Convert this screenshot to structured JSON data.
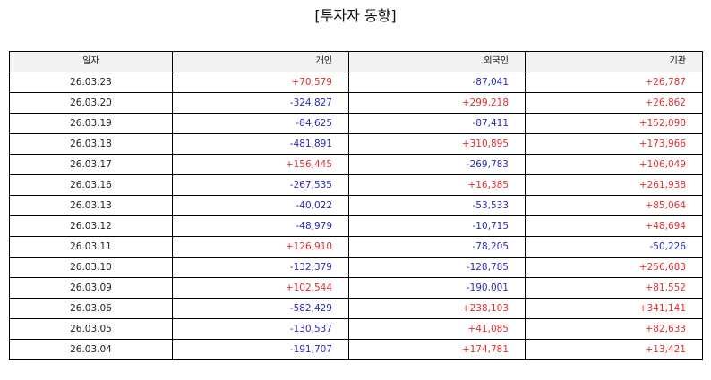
{
  "title": "[투자자 동향]",
  "colors": {
    "positive": "#e03030",
    "negative": "#2b2bb8",
    "header_bg": "#f2f2f2",
    "border": "#000000"
  },
  "table": {
    "headers": [
      "일자",
      "개인",
      "외국인",
      "기관"
    ],
    "rows": [
      {
        "date": "26.03.23",
        "individual": "+70,579",
        "foreign": "-87,041",
        "institution": "+26,787"
      },
      {
        "date": "26.03.20",
        "individual": "-324,827",
        "foreign": "+299,218",
        "institution": "+26,862"
      },
      {
        "date": "26.03.19",
        "individual": "-84,625",
        "foreign": "-87,411",
        "institution": "+152,098"
      },
      {
        "date": "26.03.18",
        "individual": "-481,891",
        "foreign": "+310,895",
        "institution": "+173,966"
      },
      {
        "date": "26.03.17",
        "individual": "+156,445",
        "foreign": "-269,783",
        "institution": "+106,049"
      },
      {
        "date": "26.03.16",
        "individual": "-267,535",
        "foreign": "+16,385",
        "institution": "+261,938"
      },
      {
        "date": "26.03.13",
        "individual": "-40,022",
        "foreign": "-53,533",
        "institution": "+85,064"
      },
      {
        "date": "26.03.12",
        "individual": "-48,979",
        "foreign": "-10,715",
        "institution": "+48,694"
      },
      {
        "date": "26.03.11",
        "individual": "+126,910",
        "foreign": "-78,205",
        "institution": "-50,226"
      },
      {
        "date": "26.03.10",
        "individual": "-132,379",
        "foreign": "-128,785",
        "institution": "+256,683"
      },
      {
        "date": "26.03.09",
        "individual": "+102,544",
        "foreign": "-190,001",
        "institution": "+81,552"
      },
      {
        "date": "26.03.06",
        "individual": "-582,429",
        "foreign": "+238,103",
        "institution": "+341,141"
      },
      {
        "date": "26.03.05",
        "individual": "-130,537",
        "foreign": "+41,085",
        "institution": "+82,633"
      },
      {
        "date": "26.03.04",
        "individual": "-191,707",
        "foreign": "+174,781",
        "institution": "+13,421"
      }
    ]
  }
}
